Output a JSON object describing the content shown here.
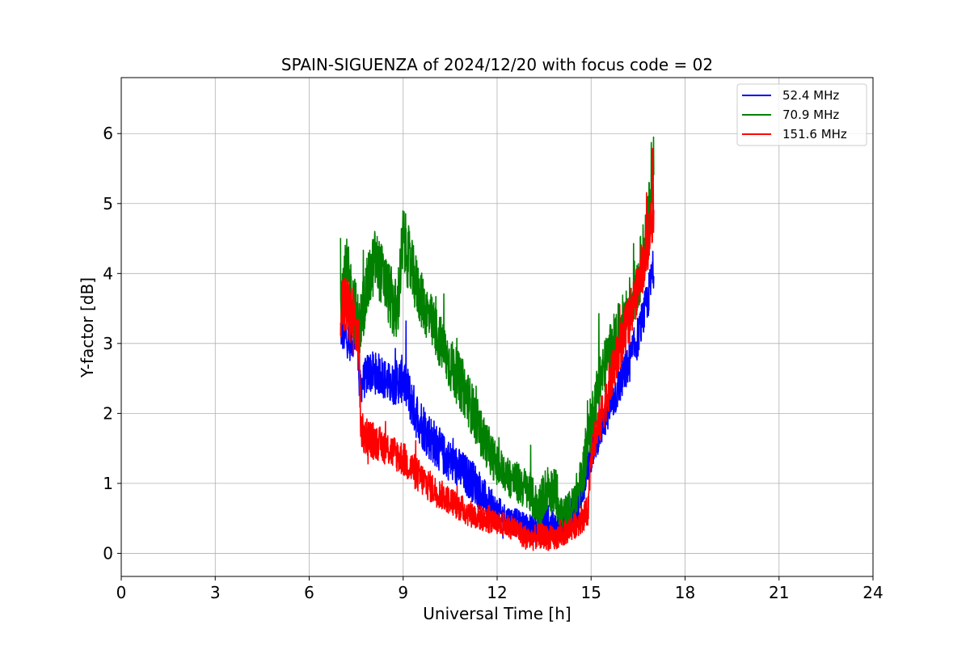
{
  "chart_data": {
    "type": "line",
    "title": "SPAIN-SIGUENZA of 2024/12/20 with focus code = 02",
    "xlabel": "Universal Time [h]",
    "ylabel": "Y-factor [dB]",
    "xlim": [
      0,
      24
    ],
    "ylim": [
      -0.33,
      6.8
    ],
    "xticks": [
      0,
      3,
      6,
      9,
      12,
      15,
      18,
      21,
      24
    ],
    "yticks": [
      0,
      1,
      2,
      3,
      4,
      5,
      6
    ],
    "grid": true,
    "legend_position": "top-right",
    "series": [
      {
        "name": " 52.4 MHz",
        "color": "#0000ff",
        "x": [
          7.0,
          7.3,
          7.55,
          7.6,
          7.9,
          8.3,
          8.6,
          9.0,
          9.4,
          9.8,
          10.3,
          10.8,
          11.3,
          11.8,
          12.3,
          12.8,
          13.2,
          13.6,
          14.0,
          14.3,
          14.6,
          14.8,
          15.1,
          15.4,
          15.8,
          16.2,
          16.5,
          16.8,
          17.0
        ],
        "y": [
          3.2,
          3.0,
          3.2,
          2.35,
          2.6,
          2.55,
          2.4,
          2.5,
          2.0,
          1.7,
          1.4,
          1.2,
          1.0,
          0.65,
          0.5,
          0.4,
          0.35,
          0.45,
          0.35,
          0.55,
          0.75,
          1.05,
          1.55,
          1.9,
          2.3,
          2.7,
          3.1,
          3.6,
          4.1
        ],
        "band": [
          0.3,
          0.25,
          0.3,
          0.25,
          0.3,
          0.3,
          0.3,
          0.35,
          0.35,
          0.35,
          0.3,
          0.3,
          0.3,
          0.25,
          0.2,
          0.2,
          0.2,
          0.2,
          0.2,
          0.2,
          0.25,
          0.25,
          0.25,
          0.3,
          0.3,
          0.3,
          0.3,
          0.3,
          0.3
        ]
      },
      {
        "name": " 70.9 MHz",
        "color": "#008000",
        "x": [
          7.0,
          7.2,
          7.4,
          7.6,
          7.8,
          8.1,
          8.4,
          8.8,
          9.0,
          9.3,
          9.6,
          10.0,
          10.5,
          11.0,
          11.5,
          12.0,
          12.5,
          13.0,
          13.3,
          13.6,
          13.9,
          14.1,
          14.4,
          14.7,
          15.0,
          15.3,
          15.7,
          16.1,
          16.5,
          16.8,
          17.0
        ],
        "y": [
          3.7,
          4.0,
          3.6,
          3.2,
          3.7,
          4.2,
          3.9,
          3.4,
          4.5,
          4.0,
          3.6,
          3.2,
          2.7,
          2.3,
          1.7,
          1.25,
          1.05,
          0.9,
          0.65,
          0.95,
          0.85,
          0.5,
          0.65,
          1.05,
          1.9,
          2.5,
          3.0,
          3.4,
          3.9,
          4.6,
          5.6
        ],
        "band": [
          0.5,
          0.5,
          0.5,
          0.45,
          0.45,
          0.45,
          0.45,
          0.5,
          0.5,
          0.45,
          0.4,
          0.4,
          0.4,
          0.4,
          0.35,
          0.3,
          0.3,
          0.3,
          0.3,
          0.35,
          0.35,
          0.3,
          0.3,
          0.35,
          0.4,
          0.4,
          0.4,
          0.4,
          0.45,
          0.5,
          0.5
        ]
      },
      {
        "name": "151.6 MHz",
        "color": "#ff0000",
        "x": [
          7.0,
          7.2,
          7.45,
          7.6,
          7.65,
          7.8,
          8.1,
          8.5,
          9.0,
          9.5,
          10.0,
          10.5,
          11.0,
          11.5,
          12.0,
          12.5,
          13.0,
          13.4,
          13.8,
          14.2,
          14.6,
          14.9,
          15.0,
          15.3,
          15.7,
          16.1,
          16.5,
          16.8,
          17.0
        ],
        "y": [
          3.6,
          3.5,
          3.3,
          2.9,
          1.7,
          1.7,
          1.6,
          1.5,
          1.35,
          1.1,
          0.9,
          0.75,
          0.6,
          0.5,
          0.42,
          0.38,
          0.2,
          0.25,
          0.2,
          0.3,
          0.45,
          0.6,
          1.5,
          1.9,
          2.6,
          3.2,
          3.8,
          4.4,
          5.0
        ],
        "band": [
          0.5,
          0.5,
          0.45,
          0.4,
          0.3,
          0.3,
          0.25,
          0.25,
          0.25,
          0.25,
          0.22,
          0.2,
          0.2,
          0.18,
          0.18,
          0.18,
          0.18,
          0.18,
          0.18,
          0.18,
          0.2,
          0.22,
          0.3,
          0.3,
          0.35,
          0.35,
          0.35,
          0.4,
          0.45
        ]
      }
    ]
  }
}
